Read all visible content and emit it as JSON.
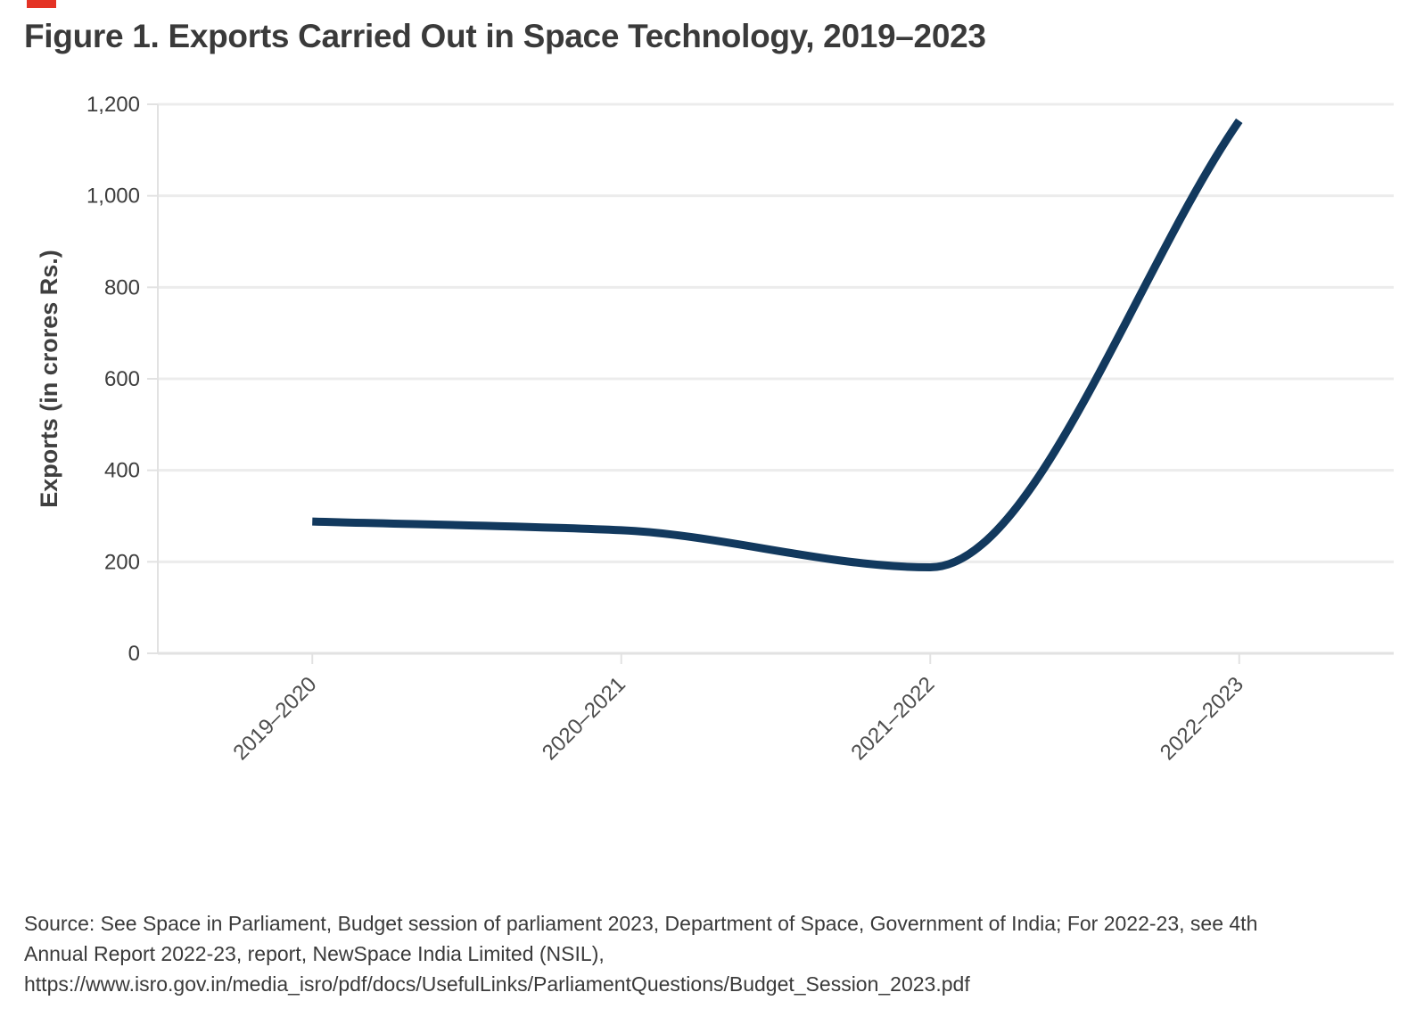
{
  "figure": {
    "title": "Figure 1. Exports Carried Out in Space Technology, 2019–2023"
  },
  "chart_data": {
    "type": "line",
    "title": "Figure 1. Exports Carried Out in Space Technology, 2019–2023",
    "categories": [
      "2019–2020",
      "2020–2021",
      "2021–2022",
      "2022–2023"
    ],
    "series": [
      {
        "name": "Exports",
        "values": [
          288,
          269,
          188,
          1164
        ]
      }
    ],
    "xlabel": "",
    "ylabel": "Exports (in crores Rs.)",
    "ylim": [
      0,
      1200
    ],
    "yticks": [
      0,
      200,
      400,
      600,
      800,
      1000,
      1200
    ],
    "ytick_labels": [
      "0",
      "200",
      "400",
      "600",
      "800",
      "1,000",
      "1,200"
    ],
    "grid": true,
    "legend_position": "none",
    "smoothing": "monotone",
    "line_color": "#12395E"
  },
  "colors": {
    "marker_red": "#E43325",
    "gridline": "#ECECEC",
    "axis_line": "#E2E2E2",
    "tick_label": "#3D3D3D",
    "x_label": "#4D4D4D",
    "axis_title": "#3F3F3F"
  },
  "source": {
    "lines": [
      "Source: See Space in Parliament, Budget session of parliament 2023, Department of Space, Government of India; For 2022-23, see 4th",
      "Annual Report 2022-23, report, NewSpace India Limited (NSIL),",
      "https://www.isro.gov.in/media_isro/pdf/docs/UsefulLinks/ParliamentQuestions/Budget_Session_2023.pdf"
    ]
  }
}
